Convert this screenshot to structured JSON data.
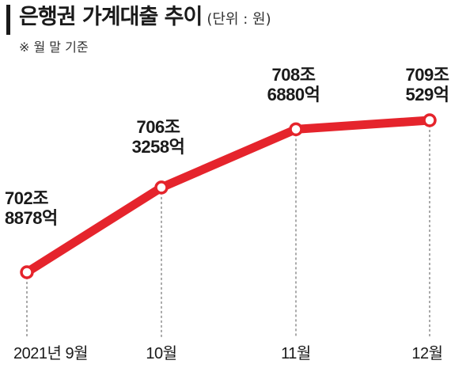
{
  "header": {
    "title": "은행권 가계대출 추이",
    "unit": "(단위 : 원)",
    "basis": "※ 월 말 기준"
  },
  "chart_data": {
    "type": "line",
    "title": "은행권 가계대출 추이",
    "unit": "원",
    "categories": [
      "2021년 9월",
      "10월",
      "11월",
      "12월"
    ],
    "values": [
      7028878,
      7063258,
      7086880,
      7090529
    ],
    "value_unit": "억원",
    "data_labels": [
      [
        "702조",
        "8878억"
      ],
      [
        "706조",
        "3258억"
      ],
      [
        "708조",
        "6880억"
      ],
      [
        "709조",
        "529억"
      ]
    ],
    "grid": false,
    "legend": "none",
    "line_color": "#e5242c"
  }
}
